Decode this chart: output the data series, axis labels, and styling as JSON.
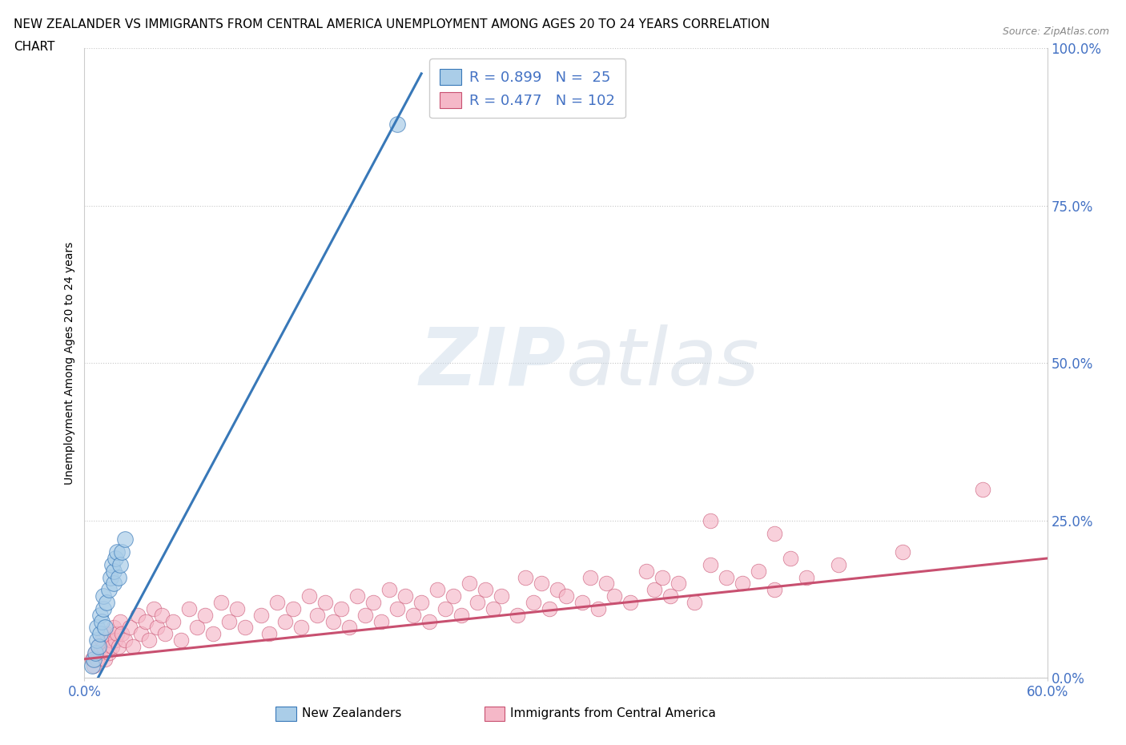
{
  "title_line1": "NEW ZEALANDER VS IMMIGRANTS FROM CENTRAL AMERICA UNEMPLOYMENT AMONG AGES 20 TO 24 YEARS CORRELATION",
  "title_line2": "CHART",
  "source_text": "Source: ZipAtlas.com",
  "ylabel": "Unemployment Among Ages 20 to 24 years",
  "xlim": [
    0.0,
    0.6
  ],
  "ylim": [
    0.0,
    1.0
  ],
  "ytick_right_vals": [
    0.0,
    0.25,
    0.5,
    0.75,
    1.0
  ],
  "ytick_right_labels": [
    "0.0%",
    "25.0%",
    "50.0%",
    "75.0%",
    "100.0%"
  ],
  "xtick_vals": [
    0.0,
    0.6
  ],
  "xtick_labels": [
    "0.0%",
    "60.0%"
  ],
  "legend_R1": "0.899",
  "legend_N1": "25",
  "legend_R2": "0.477",
  "legend_N2": "102",
  "legend_label1": "New Zealanders",
  "legend_label2": "Immigrants from Central America",
  "watermark": "ZIPatlas",
  "color_blue": "#aacde8",
  "color_pink": "#f5b8c8",
  "color_line_blue": "#3878b8",
  "color_line_pink": "#c85070",
  "color_text_blue": "#4472c4",
  "background": "#ffffff",
  "blue_scatter_x": [
    0.005,
    0.006,
    0.007,
    0.008,
    0.008,
    0.009,
    0.01,
    0.01,
    0.011,
    0.012,
    0.012,
    0.013,
    0.014,
    0.015,
    0.016,
    0.017,
    0.018,
    0.018,
    0.019,
    0.02,
    0.021,
    0.022,
    0.023,
    0.025,
    0.195
  ],
  "blue_scatter_y": [
    0.02,
    0.03,
    0.04,
    0.06,
    0.08,
    0.05,
    0.07,
    0.1,
    0.09,
    0.11,
    0.13,
    0.08,
    0.12,
    0.14,
    0.16,
    0.18,
    0.15,
    0.17,
    0.19,
    0.2,
    0.16,
    0.18,
    0.2,
    0.22,
    0.88
  ],
  "blue_line_x": [
    0.0,
    0.21
  ],
  "blue_line_y": [
    -0.04,
    0.96
  ],
  "pink_line_x": [
    0.0,
    0.6
  ],
  "pink_line_y": [
    0.03,
    0.19
  ],
  "pink_scatter_x": [
    0.005,
    0.006,
    0.007,
    0.008,
    0.009,
    0.01,
    0.011,
    0.012,
    0.013,
    0.014,
    0.015,
    0.016,
    0.017,
    0.018,
    0.019,
    0.02,
    0.021,
    0.022,
    0.023,
    0.025,
    0.028,
    0.03,
    0.033,
    0.035,
    0.038,
    0.04,
    0.043,
    0.045,
    0.048,
    0.05,
    0.055,
    0.06,
    0.065,
    0.07,
    0.075,
    0.08,
    0.085,
    0.09,
    0.095,
    0.1,
    0.11,
    0.115,
    0.12,
    0.125,
    0.13,
    0.135,
    0.14,
    0.145,
    0.15,
    0.155,
    0.16,
    0.165,
    0.17,
    0.175,
    0.18,
    0.185,
    0.19,
    0.195,
    0.2,
    0.205,
    0.21,
    0.215,
    0.22,
    0.225,
    0.23,
    0.235,
    0.24,
    0.245,
    0.25,
    0.255,
    0.26,
    0.27,
    0.275,
    0.28,
    0.285,
    0.29,
    0.295,
    0.3,
    0.31,
    0.315,
    0.32,
    0.325,
    0.33,
    0.34,
    0.35,
    0.355,
    0.36,
    0.365,
    0.37,
    0.38,
    0.39,
    0.4,
    0.41,
    0.42,
    0.43,
    0.44,
    0.45,
    0.47,
    0.51,
    0.56,
    0.39,
    0.43
  ],
  "pink_scatter_y": [
    0.03,
    0.02,
    0.04,
    0.03,
    0.05,
    0.04,
    0.06,
    0.05,
    0.03,
    0.07,
    0.04,
    0.06,
    0.05,
    0.08,
    0.06,
    0.07,
    0.05,
    0.09,
    0.07,
    0.06,
    0.08,
    0.05,
    0.1,
    0.07,
    0.09,
    0.06,
    0.11,
    0.08,
    0.1,
    0.07,
    0.09,
    0.06,
    0.11,
    0.08,
    0.1,
    0.07,
    0.12,
    0.09,
    0.11,
    0.08,
    0.1,
    0.07,
    0.12,
    0.09,
    0.11,
    0.08,
    0.13,
    0.1,
    0.12,
    0.09,
    0.11,
    0.08,
    0.13,
    0.1,
    0.12,
    0.09,
    0.14,
    0.11,
    0.13,
    0.1,
    0.12,
    0.09,
    0.14,
    0.11,
    0.13,
    0.1,
    0.15,
    0.12,
    0.14,
    0.11,
    0.13,
    0.1,
    0.16,
    0.12,
    0.15,
    0.11,
    0.14,
    0.13,
    0.12,
    0.16,
    0.11,
    0.15,
    0.13,
    0.12,
    0.17,
    0.14,
    0.16,
    0.13,
    0.15,
    0.12,
    0.18,
    0.16,
    0.15,
    0.17,
    0.14,
    0.19,
    0.16,
    0.18,
    0.2,
    0.3,
    0.25,
    0.23
  ]
}
